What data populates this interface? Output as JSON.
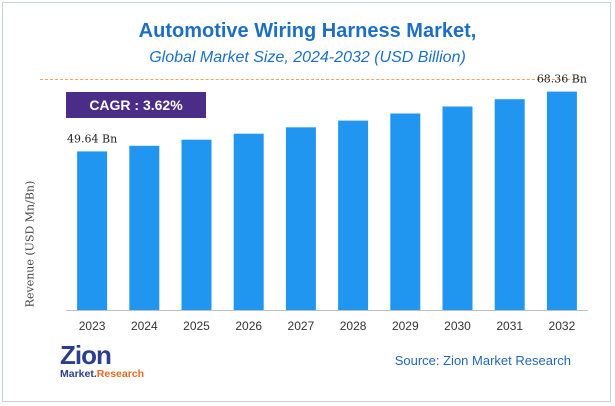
{
  "header": {
    "title": "Automotive Wiring Harness Market,",
    "subtitle": "Global Market Size, 2024-2032 (USD Billion)"
  },
  "badge": {
    "label": "CAGR : 3.62%"
  },
  "footer": {
    "source": "Source: Zion Market Research",
    "logo_main": "Zion",
    "logo_sub_left": "Market.",
    "logo_sub_right": "Research"
  },
  "colors": {
    "bar": "#2196f0",
    "title": "#1d6fc5",
    "badge": "#4b2c86",
    "divider": "#f2a25a"
  },
  "chart_data": {
    "type": "bar",
    "title": "Automotive Wiring Harness Market,",
    "subtitle": "Global Market Size, 2024-2032 (USD Billion)",
    "xlabel": "",
    "ylabel": "Revenue (USD Mn/Bn)",
    "categories": [
      "2023",
      "2024",
      "2025",
      "2026",
      "2027",
      "2028",
      "2029",
      "2030",
      "2031",
      "2032"
    ],
    "values": [
      49.64,
      51.4,
      53.3,
      55.2,
      57.2,
      59.3,
      61.5,
      63.7,
      66.0,
      68.36
    ],
    "data_labels": [
      {
        "index": 0,
        "text": "49.64 Bn"
      },
      {
        "index": 9,
        "text": "68.36 Bn"
      }
    ],
    "ylim": [
      0,
      72
    ],
    "grid": false,
    "legend": "none"
  }
}
